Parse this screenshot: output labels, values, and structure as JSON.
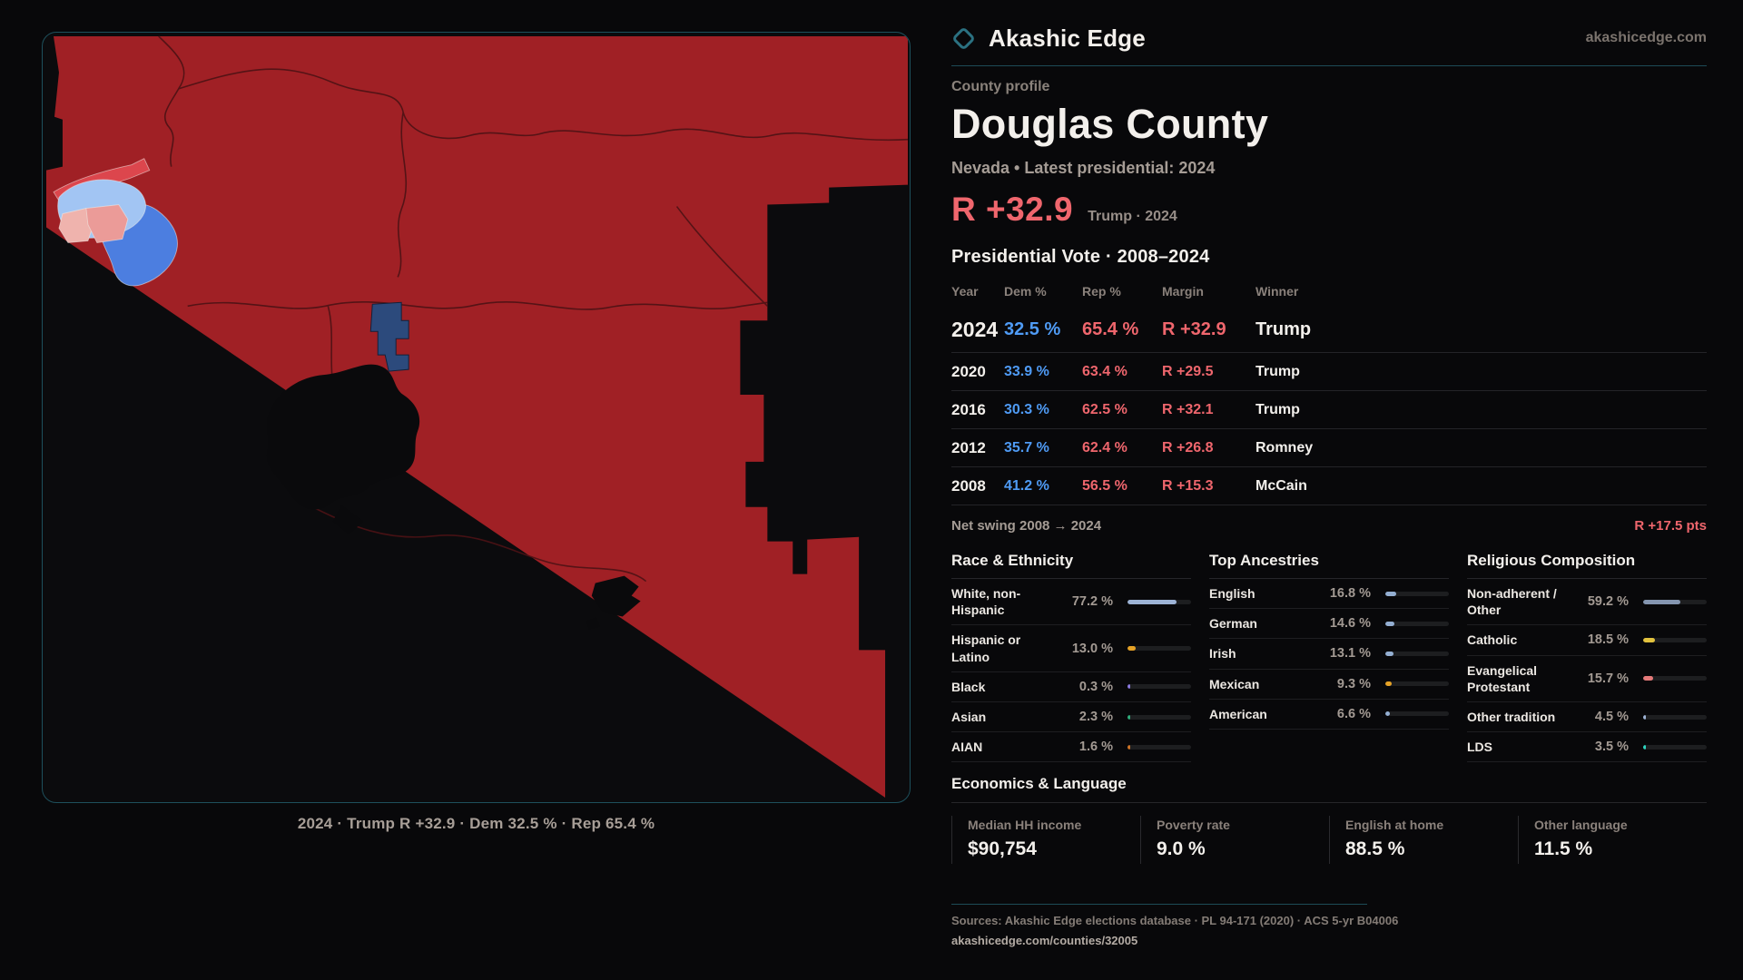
{
  "brand": {
    "name": "Akashic Edge",
    "domain": "akashicedge.com"
  },
  "profile": {
    "kicker": "County profile",
    "title": "Douglas County",
    "subtitle": "Nevada • Latest presidential: 2024",
    "margin_value": "R +32.9",
    "margin_context": "Trump · 2024"
  },
  "map": {
    "caption": "2024 · Trump R +32.9 · Dem 32.5 % · Rep 65.4 %"
  },
  "vote_table": {
    "title": "Presidential Vote · 2008–2024",
    "columns": [
      "Year",
      "Dem %",
      "Rep %",
      "Margin",
      "Winner"
    ],
    "rows": [
      {
        "year": "2024",
        "dem": "32.5 %",
        "rep": "65.4 %",
        "margin": "R +32.9",
        "winner": "Trump"
      },
      {
        "year": "2020",
        "dem": "33.9 %",
        "rep": "63.4 %",
        "margin": "R +29.5",
        "winner": "Trump"
      },
      {
        "year": "2016",
        "dem": "30.3 %",
        "rep": "62.5 %",
        "margin": "R +32.1",
        "winner": "Trump"
      },
      {
        "year": "2012",
        "dem": "35.7 %",
        "rep": "62.4 %",
        "margin": "R +26.8",
        "winner": "Romney"
      },
      {
        "year": "2008",
        "dem": "41.2 %",
        "rep": "56.5 %",
        "margin": "R +15.3",
        "winner": "McCain"
      }
    ],
    "net_swing_label": "Net swing 2008 → 2024",
    "net_swing_value": "R +17.5 pts"
  },
  "demographics": {
    "race": {
      "title": "Race & Ethnicity",
      "rows": [
        {
          "label": "White, non-Hispanic",
          "value": "77.2 %",
          "pct": 77.2,
          "color": "#9db3d6"
        },
        {
          "label": "Hispanic or Latino",
          "value": "13.0 %",
          "pct": 13.0,
          "color": "#e5a226"
        },
        {
          "label": "Black",
          "value": "0.3 %",
          "pct": 0.3,
          "color": "#8b7ae0"
        },
        {
          "label": "Asian",
          "value": "2.3 %",
          "pct": 2.3,
          "color": "#2fae7c"
        },
        {
          "label": "AIAN",
          "value": "1.6 %",
          "pct": 1.6,
          "color": "#cf7426"
        }
      ]
    },
    "ancestries": {
      "title": "Top Ancestries",
      "rows": [
        {
          "label": "English",
          "value": "16.8 %",
          "pct": 16.8,
          "color": "#94afd2"
        },
        {
          "label": "German",
          "value": "14.6 %",
          "pct": 14.6,
          "color": "#94afd2"
        },
        {
          "label": "Irish",
          "value": "13.1 %",
          "pct": 13.1,
          "color": "#94afd2"
        },
        {
          "label": "Mexican",
          "value": "9.3 %",
          "pct": 9.3,
          "color": "#e5a226"
        },
        {
          "label": "American",
          "value": "6.6 %",
          "pct": 6.6,
          "color": "#94afd2"
        }
      ]
    },
    "religion": {
      "title": "Religious Composition",
      "rows": [
        {
          "label": "Non-adherent / Other",
          "value": "59.2 %",
          "pct": 59.2,
          "color": "#8495b0"
        },
        {
          "label": "Catholic",
          "value": "18.5 %",
          "pct": 18.5,
          "color": "#e2c23e"
        },
        {
          "label": "Evangelical Protestant",
          "value": "15.7 %",
          "pct": 15.7,
          "color": "#e57a7a"
        },
        {
          "label": "Other tradition",
          "value": "4.5 %",
          "pct": 4.5,
          "color": "#9db3d6"
        },
        {
          "label": "LDS",
          "value": "3.5 %",
          "pct": 3.5,
          "color": "#2dd4bf"
        }
      ]
    }
  },
  "economics": {
    "title": "Economics & Language",
    "stats": [
      {
        "label": "Median HH income",
        "value": "$90,754"
      },
      {
        "label": "Poverty rate",
        "value": "9.0 %"
      },
      {
        "label": "English at home",
        "value": "88.5 %"
      },
      {
        "label": "Other language",
        "value": "11.5 %"
      }
    ]
  },
  "footer": {
    "sources": "Sources: Akashic Edge elections database · PL 94-171 (2020) · ACS 5-yr B04006",
    "url": "akashicedge.com/counties/32005"
  },
  "map_colors": {
    "rep_base": "#a02025",
    "rep_light": "#dc464d",
    "dem_light": "#a2c5f3",
    "dem_mid": "#4c7ee0",
    "dem_dark": "#2c4a7c",
    "lean_rep_pink": "#eb9b98"
  }
}
